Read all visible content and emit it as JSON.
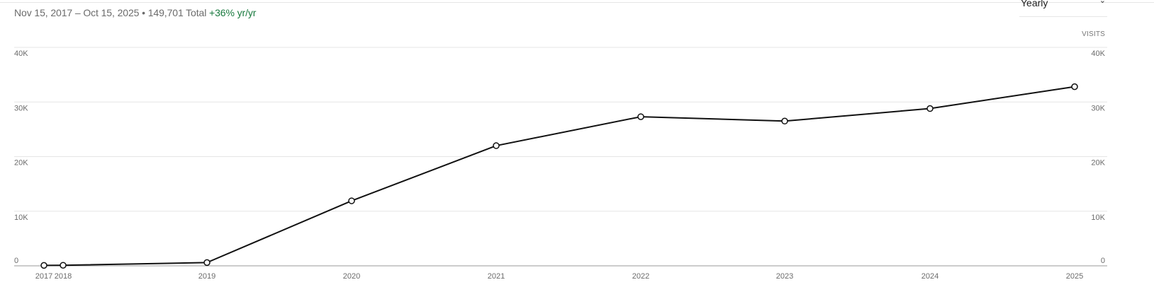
{
  "header": {
    "range": "Nov 15, 2017 – Oct 15, 2025",
    "separator": " • ",
    "total": "149,701 Total",
    "growth": "+36% yr/yr"
  },
  "period_select": {
    "value": "Yearly",
    "chevron": "⌄"
  },
  "unit_label": "VISITS",
  "colors": {
    "line": "#111111",
    "grid": "#e5e5e5",
    "growth": "#1a7a3f"
  },
  "chart_data": {
    "type": "line",
    "x": [
      "2017",
      "2018",
      "2019",
      "2020",
      "2021",
      "2022",
      "2023",
      "2024",
      "2025"
    ],
    "series": [
      {
        "values": [
          80,
          100,
          600,
          11900,
          22000,
          27300,
          26500,
          28800,
          32800
        ]
      }
    ],
    "ylim": [
      0,
      40000
    ],
    "yticks": [
      0,
      10000,
      20000,
      30000,
      40000
    ],
    "ytick_labels": [
      "0",
      "10K",
      "20K",
      "30K",
      "40K"
    ],
    "grid": true,
    "dual_y_axis": true,
    "markers": "hollow-circle"
  }
}
